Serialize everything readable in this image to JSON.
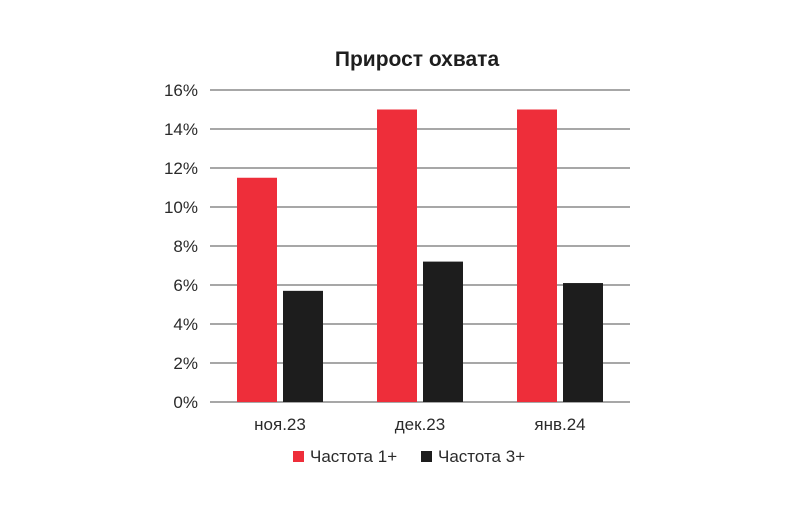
{
  "chart_data": {
    "type": "bar",
    "title": "Прирост охвата",
    "xlabel": "",
    "ylabel": "",
    "categories": [
      "ноя.23",
      "дек.23",
      "янв.24"
    ],
    "series": [
      {
        "name": "Частота 1+",
        "color": "#ee2e3a",
        "values": [
          11.5,
          15.0,
          15.0
        ]
      },
      {
        "name": "Частота 3+",
        "color": "#1d1d1d",
        "values": [
          5.7,
          7.2,
          6.1
        ]
      }
    ],
    "ylim": [
      0,
      16
    ],
    "y_ticks": [
      "0%",
      "2%",
      "4%",
      "6%",
      "8%",
      "10%",
      "12%",
      "14%",
      "16%"
    ],
    "grid": true,
    "legend": "bottom"
  }
}
